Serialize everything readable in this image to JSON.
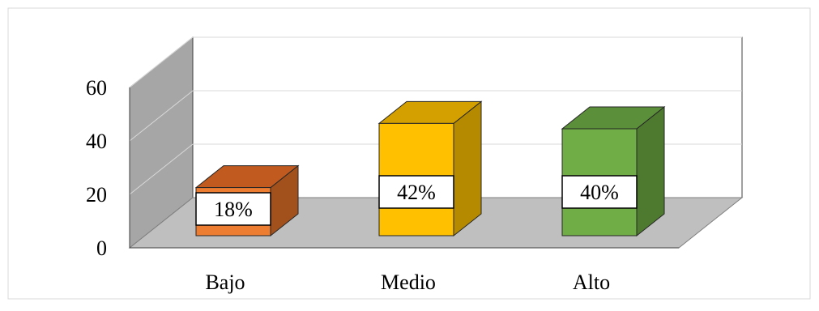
{
  "chart_data": {
    "type": "bar",
    "style": "3d",
    "categories": [
      "Bajo",
      "Medio",
      "Alto"
    ],
    "values": [
      18,
      42,
      40
    ],
    "data_labels": [
      "18%",
      "42%",
      "40%"
    ],
    "ylim": [
      0,
      60
    ],
    "y_ticks": [
      "0",
      "20",
      "40",
      "60"
    ],
    "grid": true,
    "legend": "none",
    "colors": {
      "bars": [
        "#ED7D31",
        "#FFC000",
        "#70AD47"
      ],
      "bar_tops": [
        "#C05A1F",
        "#D4A000",
        "#5B8F39"
      ],
      "bar_sides": [
        "#A3511C",
        "#B58A00",
        "#4E7A30"
      ],
      "back_wall": "#FFFFFF",
      "side_wall": "#A6A6A6",
      "floor": "#BFBFBF",
      "gridline": "#D9D9D9"
    }
  }
}
